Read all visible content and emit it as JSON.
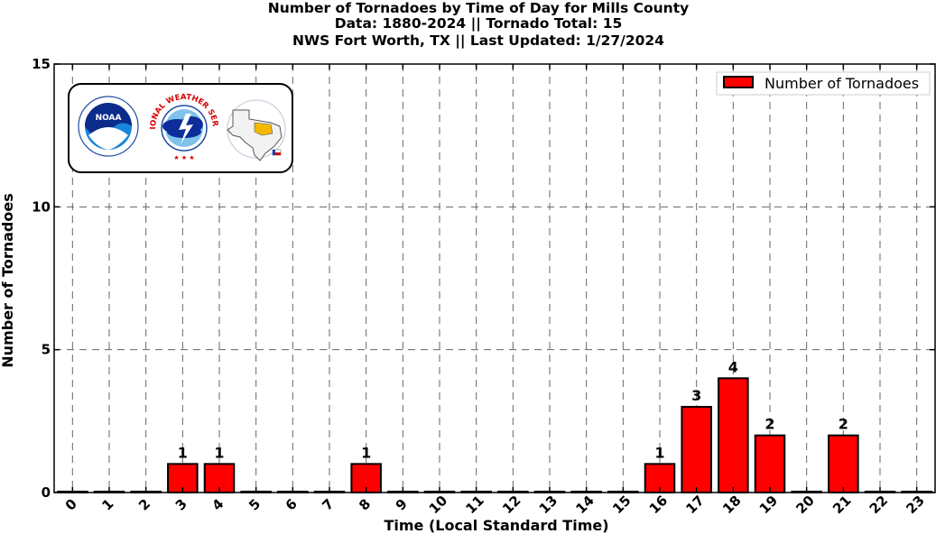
{
  "chart_data": {
    "type": "bar",
    "title_lines": [
      "Number of Tornadoes by Time of Day for Mills County",
      "Data: 1880-2024 || Tornado Total: 15",
      "NWS Fort Worth, TX || Last Updated: 1/27/2024"
    ],
    "xlabel": "Time (Local Standard Time)",
    "ylabel": "Number of Tornadoes",
    "categories": [
      "0",
      "1",
      "2",
      "3",
      "4",
      "5",
      "6",
      "7",
      "8",
      "9",
      "10",
      "11",
      "12",
      "13",
      "14",
      "15",
      "16",
      "17",
      "18",
      "19",
      "20",
      "21",
      "22",
      "23"
    ],
    "series": [
      {
        "name": "Number of Tornadoes",
        "color": "#ff0000",
        "values": [
          0,
          0,
          0,
          1,
          1,
          0,
          0,
          0,
          1,
          0,
          0,
          0,
          0,
          0,
          0,
          0,
          1,
          3,
          4,
          2,
          0,
          2,
          0,
          0
        ]
      }
    ],
    "ylim": [
      0,
      15
    ],
    "yticks": [
      0,
      5,
      10,
      15
    ],
    "grid": true,
    "legend_position": "top-right"
  },
  "logos": {
    "noaa_text": "NOAA",
    "nws_text": "NATIONAL WEATHER SERVICE"
  }
}
